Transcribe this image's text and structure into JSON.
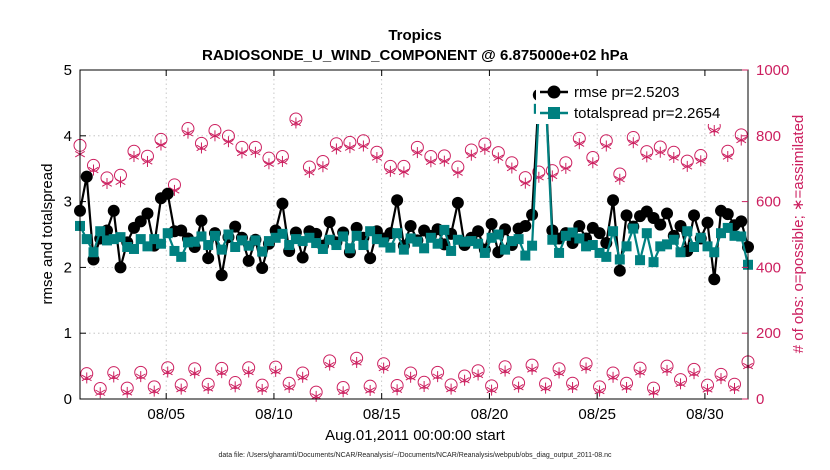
{
  "chart_data": {
    "type": "line",
    "title": "Tropics",
    "subtitle": "RADIOSONDE_U_WIND_COMPONENT @ 6.875000e+02 hPa",
    "xlabel": "Aug.01,2011 00:00:00 start",
    "ylabel": "rmse and totalspread",
    "ylabel_right": "# of obs: o=possible; ∗=assimilated",
    "footnote": "data file: /Users/gharamti/Documents/NCAR/Reanalysis/~/Documents/NCAR/Reanalysis/webpub/obs_diag_output_2011-08.nc",
    "xlim": [
      1,
      32
    ],
    "ylim": [
      0,
      5
    ],
    "ylim_right": [
      0,
      1000
    ],
    "x_ticks": [
      5,
      10,
      15,
      20,
      25,
      30
    ],
    "x_tick_labels": [
      "08/05",
      "08/10",
      "08/15",
      "08/20",
      "08/25",
      "08/30"
    ],
    "y_ticks": [
      0,
      1,
      2,
      3,
      4,
      5
    ],
    "y_tick_labels": [
      "0",
      "1",
      "2",
      "3",
      "4",
      "5"
    ],
    "y_ticks_right": [
      0,
      200,
      400,
      600,
      800,
      1000
    ],
    "y_tick_labels_right": [
      "0",
      "200",
      "400",
      "600",
      "800",
      "1000"
    ],
    "legend_position": "top-right",
    "colors": {
      "rmse": "#000000",
      "spread": "#008080",
      "obs": "#cc1f5f"
    },
    "series": [
      {
        "name": "rmse pr=2.5203",
        "axis": "left",
        "marker": "filled-circle",
        "values": [
          2.86,
          3.38,
          2.12,
          2.44,
          2.56,
          2.86,
          2.0,
          2.38,
          2.6,
          2.7,
          2.82,
          2.33,
          3.05,
          3.12,
          2.55,
          2.56,
          2.44,
          2.31,
          2.71,
          2.14,
          2.52,
          1.88,
          2.46,
          2.62,
          2.45,
          2.1,
          2.42,
          1.99,
          2.36,
          2.56,
          2.97,
          2.25,
          2.53,
          2.15,
          2.55,
          2.51,
          2.33,
          2.69,
          2.38,
          2.53,
          2.23,
          2.6,
          2.45,
          2.14,
          2.55,
          2.44,
          2.52,
          3.02,
          2.33,
          2.63,
          2.41,
          2.56,
          2.48,
          2.58,
          2.35,
          2.51,
          2.98,
          2.34,
          2.45,
          2.55,
          2.27,
          2.66,
          2.23,
          2.58,
          2.34,
          2.59,
          2.63,
          2.8,
          4.62,
          4.67,
          2.56,
          2.44,
          2.52,
          2.37,
          2.63,
          2.44,
          2.6,
          2.52,
          2.37,
          3.02,
          1.95,
          2.79,
          2.62,
          2.78,
          2.85,
          2.75,
          2.65,
          2.82,
          2.48,
          2.63,
          2.25,
          2.79,
          2.44,
          2.68,
          1.82,
          2.86,
          2.81,
          2.64,
          2.7,
          2.31
        ]
      },
      {
        "name": "totalspread pr=2.2654",
        "axis": "left",
        "marker": "filled-square",
        "values": [
          2.63,
          2.43,
          2.23,
          2.55,
          2.41,
          2.43,
          2.46,
          2.31,
          2.28,
          2.43,
          2.32,
          2.43,
          2.36,
          2.52,
          2.25,
          2.16,
          2.38,
          2.39,
          2.47,
          2.34,
          2.48,
          2.27,
          2.5,
          2.31,
          2.41,
          2.33,
          2.41,
          2.24,
          2.4,
          2.45,
          2.51,
          2.34,
          2.43,
          2.4,
          2.45,
          2.37,
          2.28,
          2.42,
          2.34,
          2.47,
          2.29,
          2.48,
          2.34,
          2.55,
          2.43,
          2.38,
          2.3,
          2.52,
          2.27,
          2.44,
          2.39,
          2.29,
          2.45,
          2.36,
          2.57,
          2.25,
          2.42,
          2.39,
          2.4,
          2.36,
          2.22,
          2.45,
          2.5,
          2.27,
          2.4,
          2.43,
          2.18,
          2.33,
          4.41,
          4.62,
          2.42,
          2.22,
          2.48,
          2.53,
          2.44,
          2.32,
          2.34,
          2.22,
          2.16,
          2.55,
          2.12,
          2.32,
          2.59,
          2.11,
          2.52,
          2.08,
          2.32,
          2.35,
          2.42,
          2.23,
          2.55,
          2.31,
          2.45,
          2.32,
          2.23,
          2.52,
          2.6,
          2.48,
          2.47,
          2.04
        ]
      },
      {
        "name": "# of obs possible",
        "axis": "right",
        "marker": "open-circle",
        "values": [
          771,
          77,
          710,
          32,
          672,
          80,
          680,
          33,
          753,
          81,
          738,
          37,
          789,
          95,
          651,
          43,
          822,
          92,
          777,
          45,
          816,
          93,
          799,
          50,
          765,
          95,
          765,
          42,
          732,
          97,
          737,
          48,
          851,
          79,
          705,
          21,
          722,
          116,
          776,
          35,
          780,
          124,
          785,
          39,
          750,
          107,
          707,
          41,
          707,
          79,
          765,
          51,
          737,
          81,
          739,
          43,
          705,
          70,
          757,
          86,
          775,
          40,
          749,
          98,
          718,
          49,
          673,
          103,
          690,
          46,
          694,
          92,
          718,
          48,
          792,
          107,
          734,
          37,
          785,
          79,
          684,
          48,
          795,
          94,
          752,
          33,
          766,
          100,
          750,
          59,
          723,
          90,
          740,
          42,
          830,
          75,
          753,
          45,
          803,
          113
        ]
      },
      {
        "name": "# of obs assimilated",
        "axis": "right",
        "marker": "asterisk",
        "values": [
          744,
          64,
          696,
          19,
          655,
          67,
          660,
          20,
          737,
          68,
          722,
          24,
          772,
          82,
          634,
          30,
          808,
          79,
          763,
          32,
          800,
          80,
          782,
          37,
          748,
          82,
          750,
          29,
          715,
          84,
          722,
          35,
          839,
          66,
          689,
          8,
          706,
          103,
          760,
          22,
          764,
          111,
          769,
          26,
          734,
          94,
          692,
          28,
          690,
          66,
          749,
          38,
          721,
          68,
          723,
          30,
          688,
          57,
          741,
          73,
          759,
          27,
          733,
          85,
          702,
          36,
          656,
          90,
          674,
          33,
          678,
          79,
          701,
          35,
          776,
          94,
          718,
          24,
          769,
          66,
          668,
          35,
          779,
          81,
          736,
          20,
          750,
          87,
          734,
          46,
          707,
          77,
          724,
          29,
          816,
          62,
          737,
          32,
          787,
          100
        ]
      }
    ]
  }
}
